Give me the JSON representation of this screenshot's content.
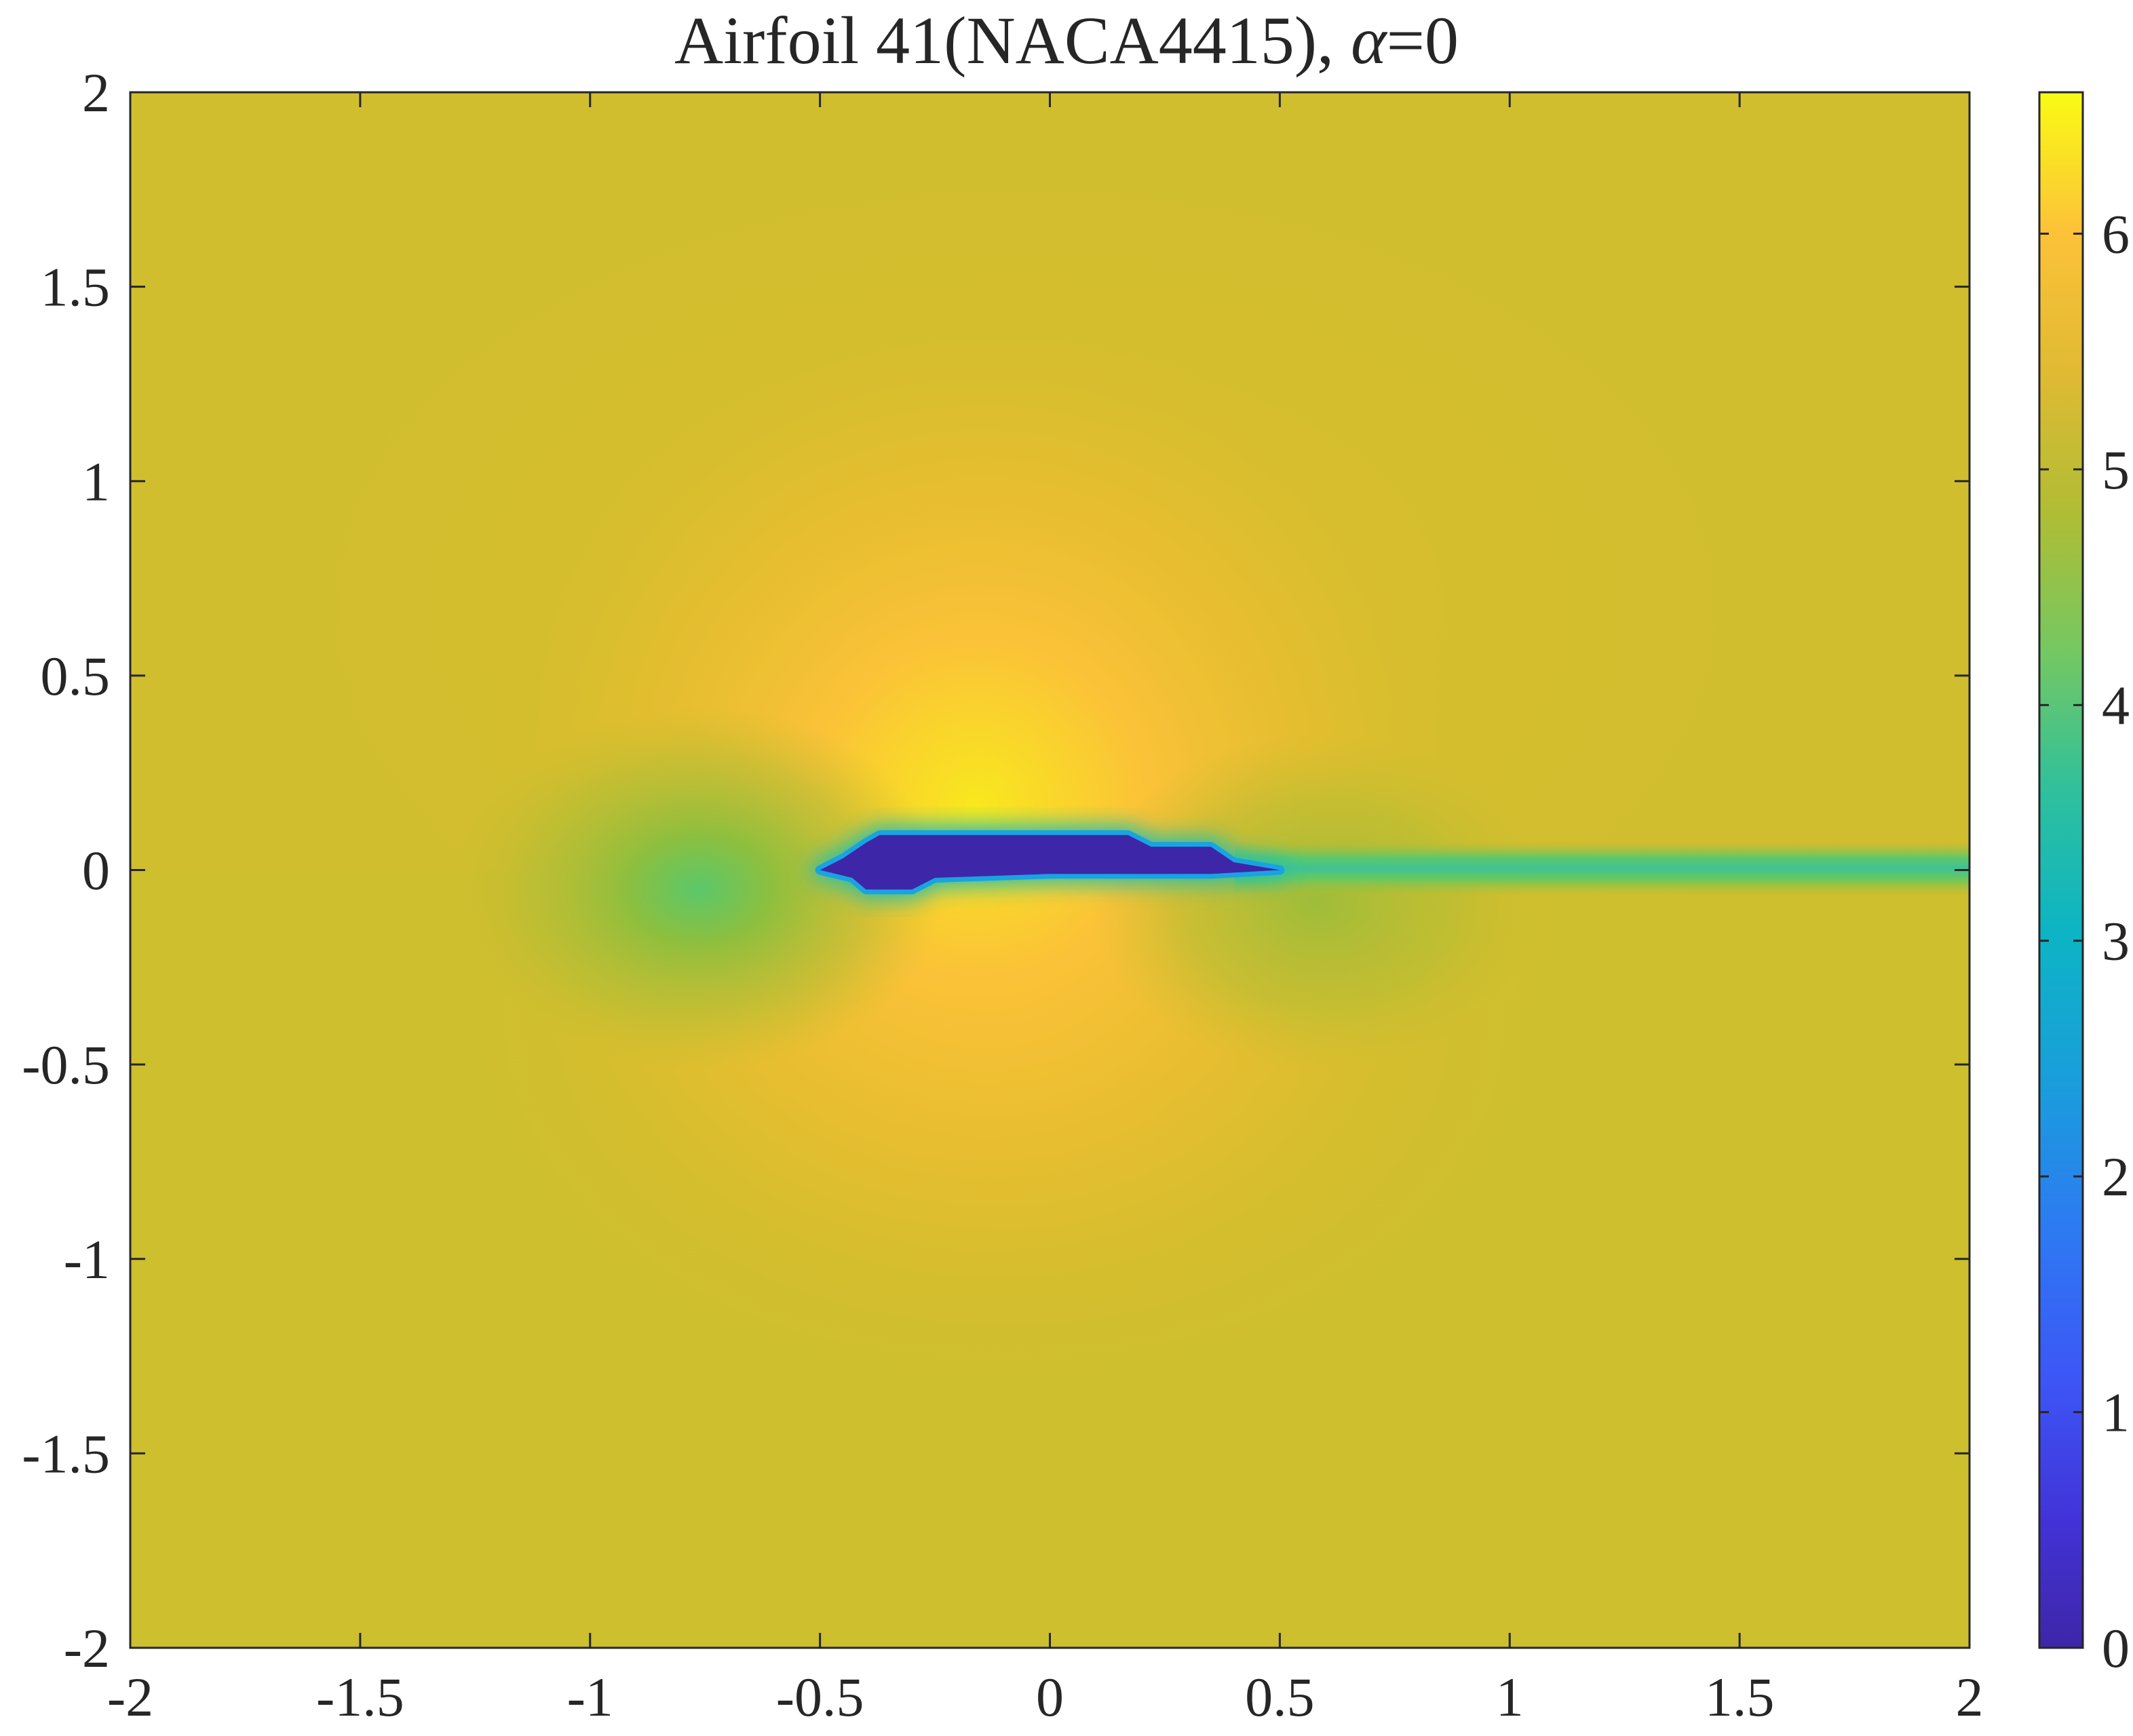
{
  "chart_data": {
    "type": "heatmap",
    "title": "Airfoil 41(NACA4415), α=0",
    "title_parts": {
      "main": "Airfoil 41(NACA4415), ",
      "symbol": "α",
      "rest": "=0"
    },
    "xlabel": "",
    "ylabel": "",
    "xlim": [
      -2,
      2
    ],
    "ylim": [
      -2,
      2
    ],
    "x_ticks": [
      -2,
      -1.5,
      -1,
      -0.5,
      0,
      0.5,
      1,
      1.5,
      2
    ],
    "x_tick_labels": [
      "-2",
      "-1.5",
      "-1",
      "-0.5",
      "0",
      "0.5",
      "1",
      "1.5",
      "2"
    ],
    "y_ticks": [
      2,
      1.5,
      1,
      0.5,
      0,
      -0.5,
      -1,
      -1.5,
      -2
    ],
    "y_tick_labels": [
      "2",
      "1.5",
      "1",
      "0.5",
      "0",
      "-0.5",
      "-1",
      "-1.5",
      "-2"
    ],
    "colorbar": {
      "range": [
        0,
        6.6
      ],
      "ticks": [
        0,
        1,
        2,
        3,
        4,
        5,
        6
      ],
      "tick_labels": [
        "0",
        "1",
        "2",
        "3",
        "4",
        "5",
        "6"
      ],
      "colormap": "parula",
      "location": "right"
    },
    "field_summary": {
      "freestream_value": 5.4,
      "airfoil_body_value": 0,
      "max_value_above_airfoil": 6.6,
      "stagnation_region_value": 4.6,
      "wake_value": 4.3
    },
    "airfoil_polygon": [
      [
        -0.5,
        0.0
      ],
      [
        -0.45,
        0.03
      ],
      [
        -0.4,
        0.07
      ],
      [
        -0.37,
        0.09
      ],
      [
        -0.2,
        0.09
      ],
      [
        0.0,
        0.09
      ],
      [
        0.17,
        0.09
      ],
      [
        0.22,
        0.06
      ],
      [
        0.35,
        0.06
      ],
      [
        0.4,
        0.02
      ],
      [
        0.5,
        0.0
      ],
      [
        0.35,
        -0.01
      ],
      [
        0.0,
        -0.01
      ],
      [
        -0.25,
        -0.02
      ],
      [
        -0.3,
        -0.05
      ],
      [
        -0.4,
        -0.05
      ],
      [
        -0.43,
        -0.02
      ]
    ],
    "grid": false
  },
  "colors": {
    "background_field": "#cdbf2e",
    "axis": "#262626"
  }
}
